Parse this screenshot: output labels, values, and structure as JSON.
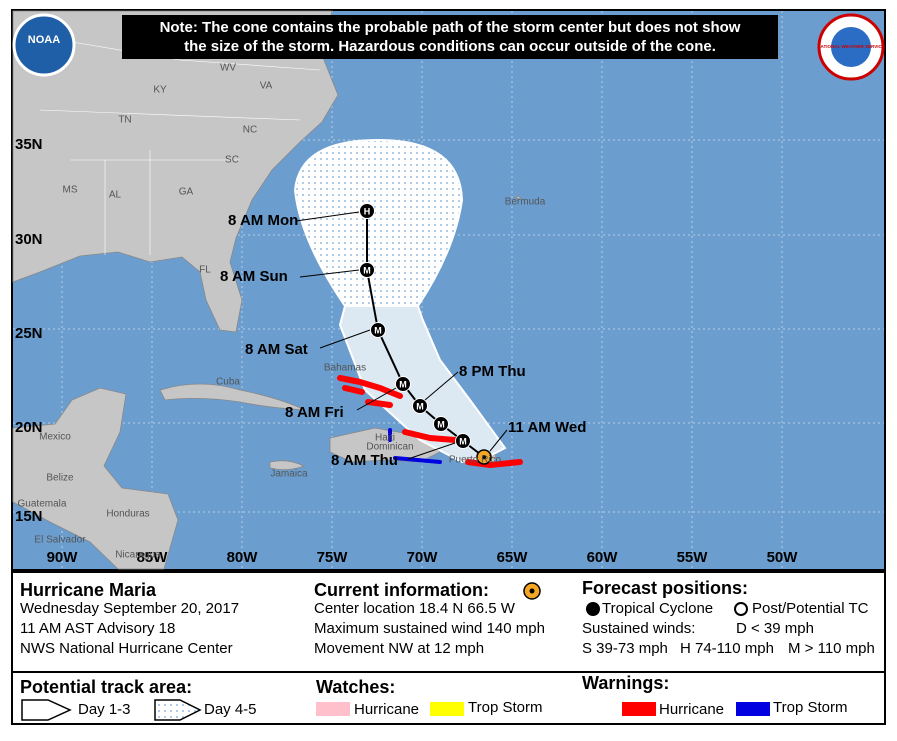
{
  "note": [
    "Note: The cone contains the probable path of the storm center but does not show",
    "the size of the storm. Hazardous conditions can occur outside of the cone."
  ],
  "logos": {
    "left": "NOAA",
    "right": "NATIONAL WEATHER SERVICE"
  },
  "map": {
    "lon_labels": [
      "90W",
      "85W",
      "80W",
      "75W",
      "70W",
      "65W",
      "60W",
      "55W",
      "50W"
    ],
    "lat_labels": [
      "35N",
      "30N",
      "25N",
      "20N",
      "15N"
    ],
    "places": [
      "WV",
      "VA",
      "KY",
      "TN",
      "NC",
      "SC",
      "MS",
      "AL",
      "GA",
      "FL",
      "Bermuda",
      "Bahamas",
      "Cuba",
      "Mexico",
      "Belize",
      "Guatemala",
      "Honduras",
      "El Salvador",
      "Nicaragua",
      "Jamaica",
      "Haiti",
      "Dominican",
      "Puerto Rico"
    ],
    "forecast_labels": [
      "8 AM Mon",
      "8 AM Sun",
      "8 AM Sat",
      "8 AM Fri",
      "8 PM Thu",
      "8 AM Thu",
      "11 AM Wed"
    ],
    "track_symbols": [
      "H",
      "M",
      "M",
      "M",
      "M",
      "M",
      "M"
    ]
  },
  "panel": {
    "storm": {
      "name": "Hurricane Maria",
      "date": "Wednesday September 20, 2017",
      "advisory": "11 AM AST Advisory 18",
      "center": "NWS National Hurricane Center"
    },
    "current": {
      "title": "Current information:",
      "lines": [
        "Center location 18.4 N 66.5 W",
        "Maximum sustained wind 140 mph",
        "Movement NW at 12 mph"
      ]
    },
    "forecast": {
      "title": "Forecast positions:",
      "tropical": "Tropical Cyclone",
      "post": "Post/Potential TC",
      "winds": "Sustained winds:",
      "d": "D < 39 mph",
      "s": "S 39-73 mph",
      "h": "H 74-110 mph",
      "m": "M > 110 mph"
    },
    "track_area": {
      "title": "Potential track area:",
      "day13": "Day 1-3",
      "day45": "Day 4-5"
    },
    "watches": {
      "title": "Watches:",
      "hurricane": "Hurricane",
      "trop_storm": "Trop Storm"
    },
    "warnings": {
      "title": "Warnings:",
      "hurricane": "Hurricane",
      "trop_storm": "Trop Storm"
    }
  }
}
